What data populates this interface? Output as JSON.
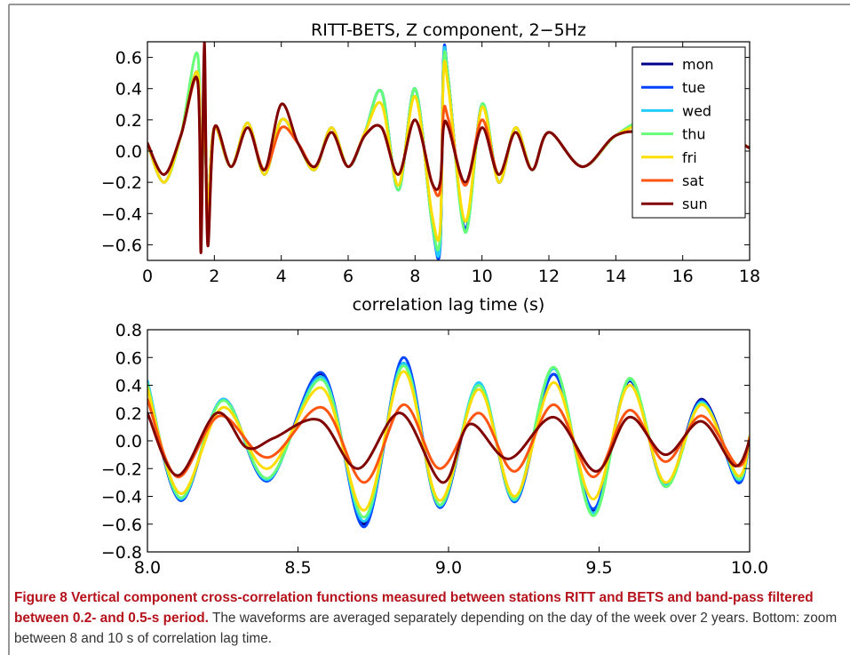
{
  "colors": {
    "mon": "#00008f",
    "tue": "#0044ff",
    "wed": "#22ccff",
    "thu": "#66ff77",
    "fri": "#ffdd00",
    "sat": "#ff5511",
    "sun": "#800000",
    "caption_title": "#b5121b",
    "frame": "#777777"
  },
  "caption": {
    "title": "Figure 8 Vertical component cross-correlation functions measured between stations RITT and BETS and band-pass filtered between 0.2- and 0.5-s period.",
    "body": "The waveforms are averaged separately depending on the day of the week over 2 years. Bottom: zoom between 8 and 10 s of correlation lag time."
  },
  "chart_data": [
    {
      "type": "line",
      "title": "RITT-BETS, Z component, 2−5Hz",
      "xlabel": "correlation lag time (s)",
      "ylabel": "",
      "xlim": [
        0,
        18
      ],
      "ylim": [
        -0.7,
        0.7
      ],
      "xticks": [
        "0",
        "2",
        "4",
        "6",
        "8",
        "10",
        "12",
        "14",
        "16",
        "18"
      ],
      "yticks": [
        "−0.6",
        "−0.4",
        "−0.2",
        "0.0",
        "0.2",
        "0.4",
        "0.6"
      ],
      "legend_position": "top-right",
      "grid": false,
      "series": [
        {
          "name": "mon",
          "color": "#00008f",
          "x": [
            0,
            0.5,
            1,
            1.5,
            1.6,
            1.7,
            1.8,
            2,
            2.5,
            3,
            3.5,
            4,
            4.5,
            5,
            5.5,
            6,
            6.5,
            7,
            7.5,
            8,
            8.5,
            8.75,
            8.85,
            9,
            9.5,
            10,
            10.5,
            11,
            11.5,
            12,
            13,
            14,
            15,
            16,
            17,
            18
          ],
          "y": [
            0.05,
            -0.2,
            0.1,
            0.5,
            -0.3,
            0.3,
            -0.35,
            0.15,
            -0.1,
            0.18,
            -0.15,
            0.2,
            0.05,
            -0.12,
            0.15,
            -0.1,
            0.12,
            0.38,
            -0.25,
            0.4,
            -0.45,
            -0.6,
            0.58,
            0.45,
            -0.5,
            0.3,
            -0.2,
            0.15,
            -0.12,
            0.12,
            -0.1,
            0.1,
            0.18,
            -0.1,
            0.12,
            0.02
          ]
        },
        {
          "name": "tue",
          "color": "#0044ff",
          "x": [
            0,
            0.5,
            1,
            1.5,
            1.6,
            1.7,
            1.8,
            2,
            2.5,
            3,
            3.5,
            4,
            4.5,
            5,
            5.5,
            6,
            6.5,
            7,
            7.5,
            8,
            8.5,
            8.75,
            8.85,
            9,
            9.5,
            10,
            10.5,
            11,
            11.5,
            12,
            13,
            14,
            15,
            16,
            17,
            18
          ],
          "y": [
            0.05,
            -0.2,
            0.1,
            0.5,
            -0.3,
            0.3,
            -0.35,
            0.15,
            -0.1,
            0.18,
            -0.15,
            0.2,
            0.05,
            -0.12,
            0.15,
            -0.1,
            0.12,
            0.38,
            -0.25,
            0.4,
            -0.45,
            -0.62,
            0.6,
            0.45,
            -0.5,
            0.3,
            -0.2,
            0.15,
            -0.12,
            0.12,
            -0.1,
            0.1,
            0.18,
            -0.1,
            0.12,
            0.02
          ]
        },
        {
          "name": "wed",
          "color": "#22ccff",
          "x": [
            0,
            0.5,
            1,
            1.5,
            1.6,
            1.7,
            1.8,
            2,
            2.5,
            3,
            3.5,
            4,
            4.5,
            5,
            5.5,
            6,
            6.5,
            7,
            7.5,
            8,
            8.5,
            8.75,
            8.85,
            9,
            9.5,
            10,
            10.5,
            11,
            11.5,
            12,
            13,
            14,
            15,
            16,
            17,
            18
          ],
          "y": [
            0.05,
            -0.2,
            0.1,
            0.5,
            -0.3,
            0.3,
            -0.35,
            0.15,
            -0.1,
            0.18,
            -0.15,
            0.2,
            0.05,
            -0.12,
            0.15,
            -0.1,
            0.12,
            0.38,
            -0.25,
            0.4,
            -0.45,
            -0.6,
            0.58,
            0.45,
            -0.52,
            0.3,
            -0.2,
            0.15,
            -0.12,
            0.12,
            -0.1,
            0.1,
            0.18,
            -0.1,
            0.12,
            0.02
          ]
        },
        {
          "name": "thu",
          "color": "#66ff77",
          "x": [
            0,
            0.5,
            1,
            1.5,
            1.6,
            1.7,
            1.8,
            2,
            2.5,
            3,
            3.5,
            4,
            4.5,
            5,
            5.5,
            6,
            6.5,
            7,
            7.5,
            8,
            8.5,
            8.75,
            8.85,
            9,
            9.5,
            10,
            10.5,
            11,
            11.5,
            12,
            13,
            14,
            15,
            16,
            17,
            18
          ],
          "y": [
            0.05,
            -0.2,
            0.1,
            0.62,
            -0.4,
            0.3,
            -0.35,
            0.15,
            -0.1,
            0.18,
            -0.15,
            0.2,
            0.05,
            -0.12,
            0.15,
            -0.1,
            0.12,
            0.38,
            -0.25,
            0.4,
            -0.45,
            -0.55,
            0.55,
            0.45,
            -0.52,
            0.3,
            -0.2,
            0.15,
            -0.12,
            0.12,
            -0.1,
            0.1,
            0.18,
            -0.1,
            0.12,
            0.02
          ]
        },
        {
          "name": "fri",
          "color": "#ffdd00",
          "x": [
            0,
            0.5,
            1,
            1.5,
            1.6,
            1.7,
            1.8,
            2,
            2.5,
            3,
            3.5,
            4,
            4.5,
            5,
            5.5,
            6,
            6.5,
            7,
            7.5,
            8,
            8.5,
            8.75,
            8.85,
            9,
            9.5,
            10,
            10.5,
            11,
            11.5,
            12,
            13,
            14,
            15,
            16,
            17,
            18
          ],
          "y": [
            0.05,
            -0.2,
            0.1,
            0.5,
            -0.3,
            0.3,
            -0.35,
            0.15,
            -0.1,
            0.18,
            -0.15,
            0.2,
            0.05,
            -0.12,
            0.15,
            -0.1,
            0.12,
            0.3,
            -0.22,
            0.35,
            -0.4,
            -0.5,
            0.5,
            0.4,
            -0.45,
            0.28,
            -0.2,
            0.15,
            -0.12,
            0.12,
            -0.1,
            0.1,
            0.15,
            -0.1,
            0.12,
            0.02
          ]
        },
        {
          "name": "sat",
          "color": "#ff5511",
          "x": [
            0,
            0.5,
            1,
            1.5,
            1.6,
            1.7,
            1.8,
            2,
            2.5,
            3,
            3.5,
            4,
            4.5,
            5,
            5.5,
            6,
            6.5,
            7,
            7.5,
            8,
            8.5,
            8.75,
            8.85,
            9,
            9.5,
            10,
            10.5,
            11,
            11.5,
            12,
            13,
            14,
            15,
            16,
            17,
            18
          ],
          "y": [
            0.05,
            -0.15,
            0.1,
            0.45,
            -0.5,
            0.55,
            -0.55,
            0.15,
            -0.1,
            0.15,
            -0.12,
            0.15,
            0.05,
            -0.1,
            0.12,
            -0.1,
            0.1,
            0.15,
            -0.15,
            0.2,
            -0.2,
            -0.25,
            0.25,
            0.2,
            -0.22,
            0.2,
            -0.15,
            0.12,
            -0.12,
            0.12,
            -0.1,
            0.1,
            0.1,
            -0.1,
            0.1,
            0.02
          ]
        },
        {
          "name": "sun",
          "color": "#800000",
          "x": [
            0,
            0.5,
            1,
            1.5,
            1.6,
            1.7,
            1.8,
            2,
            2.5,
            3,
            3.5,
            4,
            4.5,
            5,
            5.5,
            6,
            6.5,
            7,
            7.5,
            8,
            8.5,
            8.75,
            8.85,
            9,
            9.5,
            10,
            10.5,
            11,
            11.5,
            12,
            13,
            14,
            15,
            16,
            17,
            18
          ],
          "y": [
            0.05,
            -0.15,
            0.1,
            0.45,
            -0.65,
            0.7,
            -0.6,
            0.15,
            -0.1,
            0.15,
            -0.12,
            0.3,
            0.05,
            -0.1,
            0.12,
            -0.1,
            0.1,
            0.15,
            -0.15,
            0.2,
            -0.2,
            -0.2,
            0.15,
            0.15,
            -0.2,
            0.15,
            -0.15,
            0.12,
            -0.12,
            0.12,
            -0.1,
            0.1,
            0.1,
            -0.1,
            0.1,
            0.02
          ]
        }
      ]
    },
    {
      "type": "line",
      "title": "",
      "xlabel": "",
      "ylabel": "",
      "xlim": [
        8.0,
        10.0
      ],
      "ylim": [
        -0.8,
        0.8
      ],
      "xticks": [
        "8.0",
        "8.5",
        "9.0",
        "9.5",
        "10.0"
      ],
      "yticks": [
        "−0.8",
        "−0.6",
        "−0.4",
        "−0.2",
        "0.0",
        "0.2",
        "0.4",
        "0.6",
        "0.8"
      ],
      "grid": false,
      "series": [
        {
          "name": "mon",
          "color": "#00008f",
          "x": [
            8.0,
            8.11,
            8.25,
            8.4,
            8.58,
            8.72,
            8.85,
            8.97,
            9.1,
            9.22,
            9.35,
            9.48,
            9.6,
            9.72,
            9.84,
            9.96,
            10.0
          ],
          "y": [
            0.42,
            -0.43,
            0.3,
            -0.28,
            0.48,
            -0.6,
            0.56,
            -0.48,
            0.4,
            -0.43,
            0.48,
            -0.5,
            0.43,
            -0.32,
            0.3,
            -0.28,
            0.03
          ]
        },
        {
          "name": "tue",
          "color": "#0044ff",
          "x": [
            8.0,
            8.11,
            8.25,
            8.4,
            8.58,
            8.72,
            8.85,
            8.97,
            9.1,
            9.22,
            9.35,
            9.48,
            9.6,
            9.72,
            9.84,
            9.96,
            10.0
          ],
          "y": [
            0.43,
            -0.43,
            0.3,
            -0.29,
            0.49,
            -0.62,
            0.6,
            -0.48,
            0.41,
            -0.44,
            0.48,
            -0.49,
            0.44,
            -0.33,
            0.29,
            -0.3,
            0.03
          ]
        },
        {
          "name": "wed",
          "color": "#22ccff",
          "x": [
            8.0,
            8.11,
            8.25,
            8.4,
            8.58,
            8.72,
            8.85,
            8.97,
            9.1,
            9.22,
            9.35,
            9.48,
            9.6,
            9.72,
            9.84,
            9.96,
            10.0
          ],
          "y": [
            0.43,
            -0.42,
            0.3,
            -0.28,
            0.46,
            -0.58,
            0.56,
            -0.47,
            0.42,
            -0.43,
            0.52,
            -0.52,
            0.44,
            -0.32,
            0.28,
            -0.28,
            0.03
          ]
        },
        {
          "name": "thu",
          "color": "#66ff77",
          "x": [
            8.0,
            8.11,
            8.25,
            8.4,
            8.58,
            8.72,
            8.85,
            8.97,
            9.1,
            9.22,
            9.35,
            9.48,
            9.6,
            9.72,
            9.84,
            9.96,
            10.0
          ],
          "y": [
            0.41,
            -0.41,
            0.29,
            -0.27,
            0.44,
            -0.55,
            0.54,
            -0.46,
            0.4,
            -0.42,
            0.53,
            -0.54,
            0.45,
            -0.33,
            0.27,
            -0.27,
            0.03
          ]
        },
        {
          "name": "fri",
          "color": "#ffdd00",
          "x": [
            8.0,
            8.11,
            8.25,
            8.4,
            8.58,
            8.72,
            8.85,
            8.97,
            9.1,
            9.22,
            9.35,
            9.48,
            9.6,
            9.72,
            9.84,
            9.96,
            10.0
          ],
          "y": [
            0.38,
            -0.38,
            0.24,
            -0.2,
            0.38,
            -0.5,
            0.5,
            -0.43,
            0.37,
            -0.4,
            0.42,
            -0.42,
            0.4,
            -0.3,
            0.26,
            -0.25,
            0.03
          ]
        },
        {
          "name": "sat",
          "color": "#ff5511",
          "x": [
            8.0,
            8.1,
            8.24,
            8.4,
            8.58,
            8.72,
            8.85,
            8.97,
            9.1,
            9.22,
            9.35,
            9.48,
            9.6,
            9.72,
            9.84,
            9.96,
            10.0
          ],
          "y": [
            0.3,
            -0.26,
            0.18,
            -0.12,
            0.24,
            -0.3,
            0.26,
            -0.2,
            0.2,
            -0.22,
            0.26,
            -0.26,
            0.22,
            -0.15,
            0.18,
            -0.18,
            0.02
          ]
        },
        {
          "name": "sun",
          "color": "#800000",
          "x": [
            8.0,
            8.1,
            8.23,
            8.33,
            8.42,
            8.57,
            8.7,
            8.84,
            8.98,
            9.07,
            9.2,
            9.35,
            9.49,
            9.6,
            9.72,
            9.84,
            9.95,
            10.0
          ],
          "y": [
            0.2,
            -0.25,
            0.2,
            -0.05,
            0.02,
            0.15,
            -0.2,
            0.2,
            -0.3,
            0.12,
            -0.13,
            0.17,
            -0.22,
            0.17,
            -0.1,
            0.14,
            -0.18,
            0.0
          ]
        }
      ]
    }
  ]
}
